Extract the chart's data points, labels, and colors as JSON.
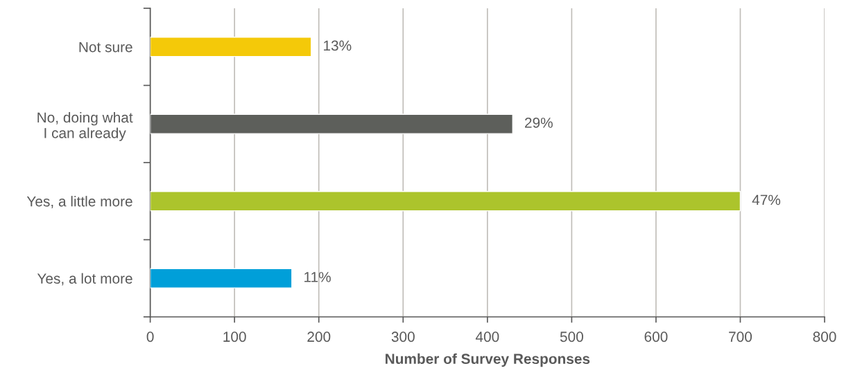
{
  "chart_data": {
    "type": "bar",
    "orientation": "horizontal",
    "xlabel": "Number of Survey Responses",
    "categories": [
      "Not sure",
      "No, doing what\nI can already",
      "Yes, a little more",
      "Yes, a lot more"
    ],
    "values": [
      191,
      430,
      700,
      168
    ],
    "colors": [
      "#f4c909",
      "#5d5f5b",
      "#acc42c",
      "#009fd9"
    ],
    "annotations": [
      {
        "text": "13%",
        "x": 191,
        "y": "Not sure"
      },
      {
        "text": "29%",
        "x": 430,
        "y": "No, doing what\nI can already"
      },
      {
        "text": "47%",
        "x": 700,
        "y": "Yes, a little more"
      },
      {
        "text": "11%",
        "x": 168,
        "y": "Yes, a lot more"
      }
    ],
    "xlim": [
      0,
      800
    ],
    "xticks": [
      0,
      100,
      200,
      300,
      400,
      500,
      600,
      700,
      800
    ],
    "grid": "x"
  }
}
